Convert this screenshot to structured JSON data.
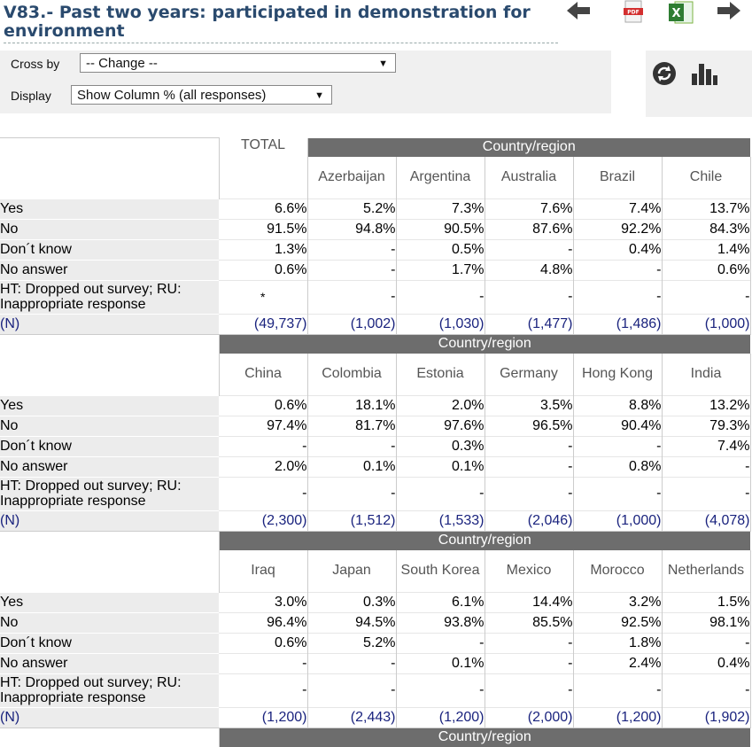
{
  "title": "V83.- Past two years: participated in demonstration for environment",
  "toolbar": {
    "back_icon": "arrow-left-icon",
    "pdf_label": "PDF",
    "excel_label": "X",
    "forward_icon": "arrow-right-icon"
  },
  "controls": {
    "crossby_label": "Cross by",
    "crossby_value": "-- Change --",
    "display_label": "Display",
    "display_value": "Show Column % (all responses)"
  },
  "side_icons": [
    "refresh-icon",
    "bar-chart-icon"
  ],
  "group_label": "Country/region",
  "total_label": "TOTAL",
  "row_labels": [
    "Yes",
    "No",
    "Don´t know",
    "No answer",
    "HT: Dropped out survey; RU: Inappropriate response",
    "(N)"
  ],
  "blocks": [
    {
      "columns": [
        "Azerbaijan",
        "Argentina",
        "Australia",
        "Brazil",
        "Chile"
      ],
      "total": [
        "6.6%",
        "91.5%",
        "1.3%",
        "0.6%",
        "*",
        "(49,737)"
      ],
      "rows": [
        [
          "5.2%",
          "7.3%",
          "7.6%",
          "7.4%",
          "13.7%"
        ],
        [
          "94.8%",
          "90.5%",
          "87.6%",
          "92.2%",
          "84.3%"
        ],
        [
          "-",
          "0.5%",
          "-",
          "0.4%",
          "1.4%"
        ],
        [
          "-",
          "1.7%",
          "4.8%",
          "-",
          "0.6%"
        ],
        [
          "-",
          "-",
          "-",
          "-",
          "-"
        ],
        [
          "(1,002)",
          "(1,030)",
          "(1,477)",
          "(1,486)",
          "(1,000)"
        ]
      ]
    },
    {
      "columns": [
        "China",
        "Colombia",
        "Estonia",
        "Germany",
        "Hong Kong",
        "India"
      ],
      "rows": [
        [
          "0.6%",
          "18.1%",
          "2.0%",
          "3.5%",
          "8.8%",
          "13.2%"
        ],
        [
          "97.4%",
          "81.7%",
          "97.6%",
          "96.5%",
          "90.4%",
          "79.3%"
        ],
        [
          "-",
          "-",
          "0.3%",
          "-",
          "-",
          "7.4%"
        ],
        [
          "2.0%",
          "0.1%",
          "0.1%",
          "-",
          "0.8%",
          "-"
        ],
        [
          "-",
          "-",
          "-",
          "-",
          "-",
          "-"
        ],
        [
          "(2,300)",
          "(1,512)",
          "(1,533)",
          "(2,046)",
          "(1,000)",
          "(4,078)"
        ]
      ]
    },
    {
      "columns": [
        "Iraq",
        "Japan",
        "South Korea",
        "Mexico",
        "Morocco",
        "Netherlands"
      ],
      "rows": [
        [
          "3.0%",
          "0.3%",
          "6.1%",
          "14.4%",
          "3.2%",
          "1.5%"
        ],
        [
          "96.4%",
          "94.5%",
          "93.8%",
          "85.5%",
          "92.5%",
          "98.1%"
        ],
        [
          "0.6%",
          "5.2%",
          "-",
          "-",
          "1.8%",
          "-"
        ],
        [
          "-",
          "-",
          "0.1%",
          "-",
          "2.4%",
          "0.4%"
        ],
        [
          "-",
          "-",
          "-",
          "-",
          "-",
          "-"
        ],
        [
          "(1,200)",
          "(2,443)",
          "(1,200)",
          "(2,000)",
          "(1,200)",
          "(1,902)"
        ]
      ]
    }
  ]
}
